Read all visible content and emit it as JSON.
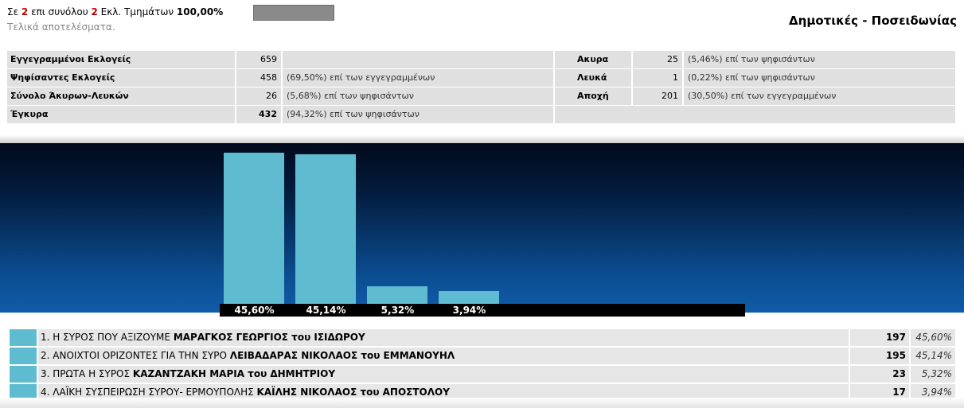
{
  "header": {
    "p1": "Σε ",
    "counted": "2",
    "p2": " επι συνόλου ",
    "total": "2",
    "p3": " Εκλ. Τμημάτων ",
    "percent": "100,00%",
    "progress_fraction": 1.0,
    "subtitle": "Τελικά αποτελέσματα.",
    "title": "Δημοτικές - Ποσειδωνίας"
  },
  "stats": {
    "left": [
      {
        "label": "Εγγεγραμμένοι Εκλογείς",
        "value": "659",
        "pct": ""
      },
      {
        "label": "Ψηφίσαντες Εκλογείς",
        "value": "458",
        "pct": "(69,50%) επί των εγγεγραμμένων"
      },
      {
        "label": "Σύνολο Άκυρων-Λευκών",
        "value": "26",
        "pct": "(5,68%) επί των ψηφισάντων"
      },
      {
        "label": "Έγκυρα",
        "value": "432",
        "pct": "(94,32%) επί των ψηφισάντων"
      }
    ],
    "right": [
      {
        "label": "Ακυρα",
        "value": "25",
        "pct": "(5,46%) επί των ψηφισάντων"
      },
      {
        "label": "Λευκά",
        "value": "1",
        "pct": "(0,22%) επί των ψηφισάντων"
      },
      {
        "label": "Αποχή",
        "value": "201",
        "pct": "(30,50%) επί των εγγεγραμμένων"
      }
    ]
  },
  "chart_data": {
    "type": "bar",
    "categories": [
      "1",
      "2",
      "3",
      "4"
    ],
    "values": [
      45.6,
      45.14,
      5.32,
      3.94
    ],
    "value_labels": [
      "45,60%",
      "45,14%",
      "5,32%",
      "3,94%"
    ],
    "ylim": [
      0,
      48
    ],
    "grid": false,
    "bar_color": "#5fbcd0",
    "background": [
      "#010a1c",
      "#105ca8"
    ]
  },
  "results": [
    {
      "num": "1.",
      "party": "Η ΣΥΡΟΣ ΠΟΥ ΑΞΙΖΟΥΜΕ",
      "candidate": "ΜΑΡΑΓΚΟΣ ΓΕΩΡΓΙΟΣ του ΙΣΙΔΩΡΟΥ",
      "votes": "197",
      "pct": "45,60%"
    },
    {
      "num": "2.",
      "party": "ΑΝΟΙΧΤΟΙ ΟΡΙΖΟΝΤΕΣ ΓΙΑ ΤΗΝ ΣΥΡΟ",
      "candidate": "ΛΕΙΒΑΔΑΡΑΣ ΝΙΚΟΛΑΟΣ του ΕΜΜΑΝΟΥΗΛ",
      "votes": "195",
      "pct": "45,14%"
    },
    {
      "num": "3.",
      "party": "ΠΡΩΤΑ Η ΣΥΡΟΣ",
      "candidate": "ΚΑΖΑΝΤΖΑΚΗ ΜΑΡΙΑ του ΔΗΜΗΤΡΙΟΥ",
      "votes": "23",
      "pct": "5,32%"
    },
    {
      "num": "4.",
      "party": "ΛΑΪΚΗ ΣΥΣΠΕΙΡΩΣΗ ΣΥΡΟΥ- ΕΡΜΟΥΠΟΛΗΣ",
      "candidate": "ΚΑΪΛΗΣ ΝΙΚΟΛΑΟΣ του ΑΠΟΣΤΟΛΟΥ",
      "votes": "17",
      "pct": "3,94%"
    }
  ],
  "colors": {
    "accent_red": "#c00000",
    "bar": "#5fbcd0",
    "cell_bg": "#e0e0e0"
  }
}
